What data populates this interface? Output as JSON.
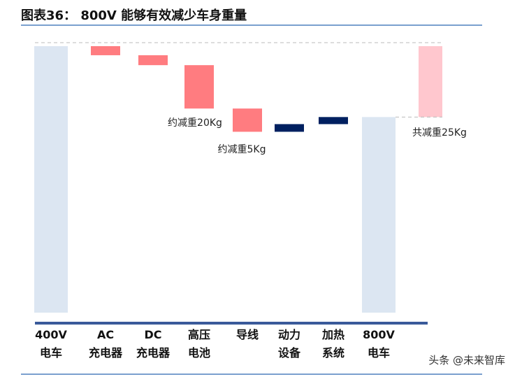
{
  "title": "图表36： 800V 能够有效减少车身重量",
  "watermark": "头条 @未来智库",
  "chart_data": {
    "type": "waterfall",
    "categories": [
      "400V\n电车",
      "AC\n充电器",
      "DC\n充电器",
      "高压\n电池",
      "导线",
      "动力\n设备",
      "加热\n系统",
      "800V\n电车"
    ],
    "values": [
      94,
      -3.2,
      -3.5,
      -15.3,
      -8.2,
      2.7,
      2.5,
      69
    ],
    "total_color": "#dce6f2",
    "decrease_color": "#ff7c80",
    "increase_color": "#002060",
    "reduction": {
      "value": 25,
      "label": "共减重25Kg",
      "color": "#ffc7ce"
    },
    "annotations": [
      "约减重20Kg",
      "约减重5Kg"
    ]
  }
}
